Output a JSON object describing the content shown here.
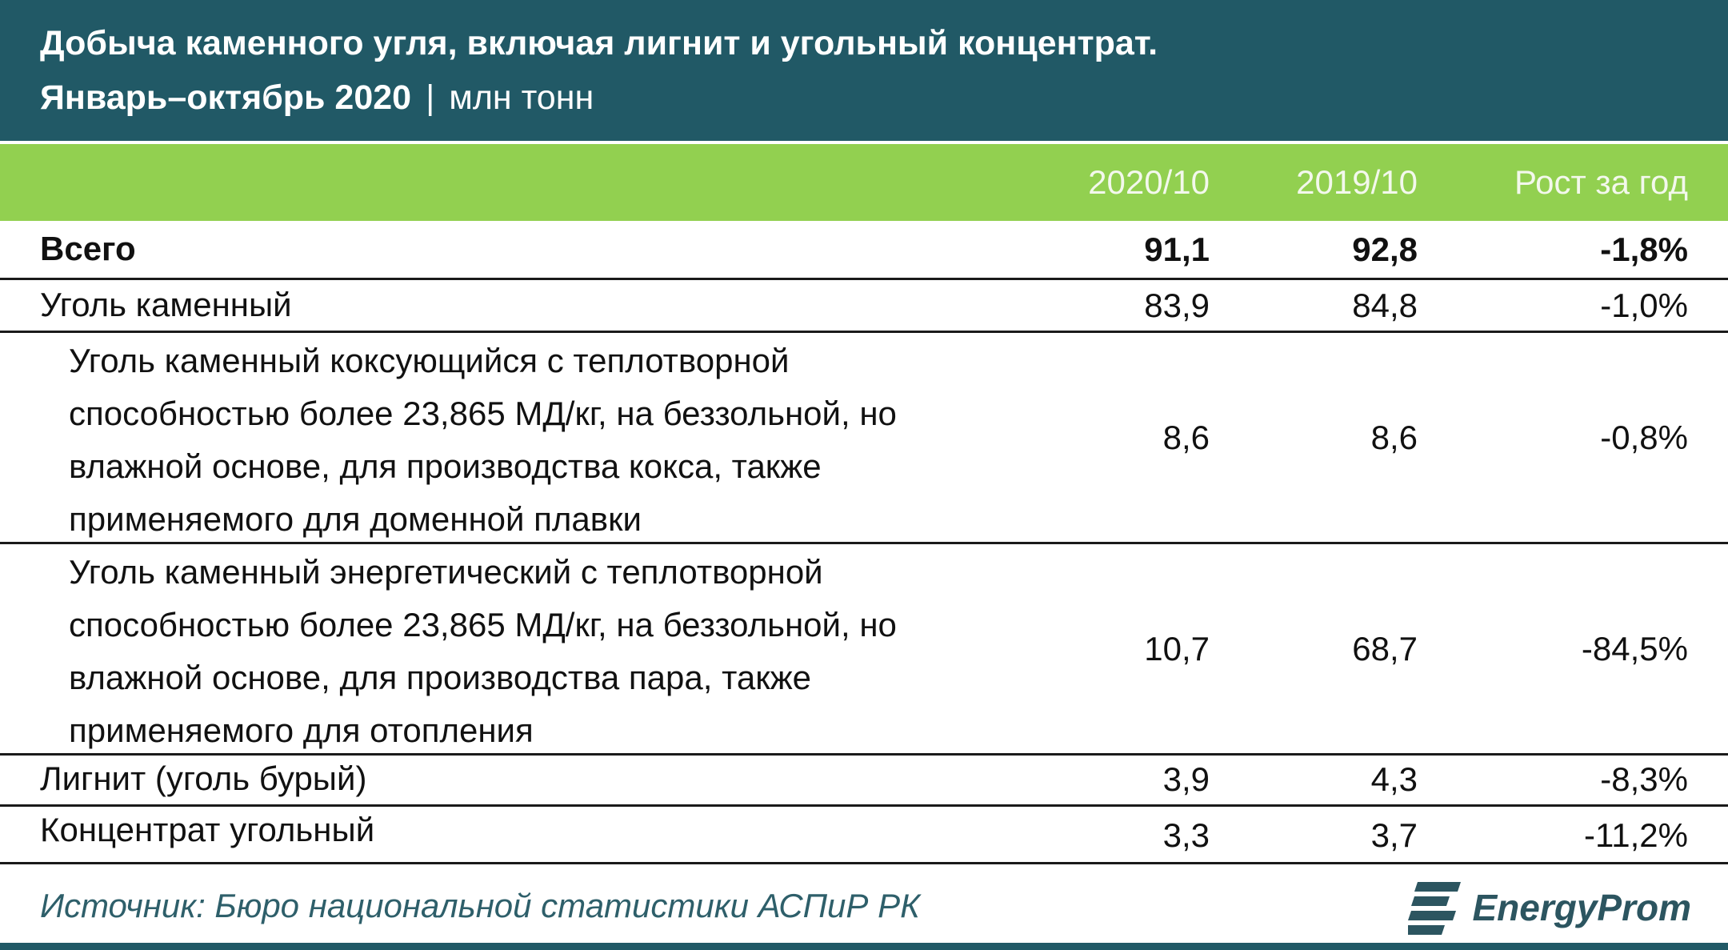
{
  "header": {
    "title": "Добыча каменного угля, включая лигнит и угольный концентрат.",
    "period": "Январь–октябрь 2020",
    "separator": "|",
    "unit": "млн тонн"
  },
  "chart_data": {
    "type": "table",
    "title": "Добыча каменного угля, включая лигнит и угольный концентрат.",
    "subtitle": "Январь–октябрь 2020 | млн тонн",
    "columns": [
      "",
      "2020/10",
      "2019/10",
      "Рост за год"
    ],
    "rows": [
      {
        "label": "Всего",
        "v2020": "91,1",
        "v2019": "92,8",
        "growth": "-1,8%"
      },
      {
        "label": "Уголь каменный",
        "v2020": "83,9",
        "v2019": "84,8",
        "growth": "-1,0%"
      },
      {
        "label": "Уголь каменный коксующийся с теплотворной способностью более 23,865 МД/кг, на беззольной, но влажной основе, для производства кокса, также применяемого для доменной плавки",
        "v2020": "8,6",
        "v2019": "8,6",
        "growth": "-0,8%"
      },
      {
        "label": "Уголь каменный энергетический с теплотворной способностью более 23,865 МД/кг, на беззольной, но влажной основе, для  производства пара, также применяемого для отопления",
        "v2020": "10,7",
        "v2019": "68,7",
        "growth": "-84,5%"
      },
      {
        "label": "Лигнит (уголь бурый)",
        "v2020": "3,9",
        "v2019": "4,3",
        "growth": "-8,3%"
      },
      {
        "label": "Концентрат угольный",
        "v2020": "3,3",
        "v2019": "3,7",
        "growth": "-11,2%"
      }
    ]
  },
  "footer": {
    "source": "Источник: Бюро национальной статистики АСПиР РК",
    "logo_text": "EnergyProm"
  },
  "colors": {
    "header_bg": "#215966",
    "column_header_bg": "#92d050",
    "source_text": "#2e5f6a"
  }
}
